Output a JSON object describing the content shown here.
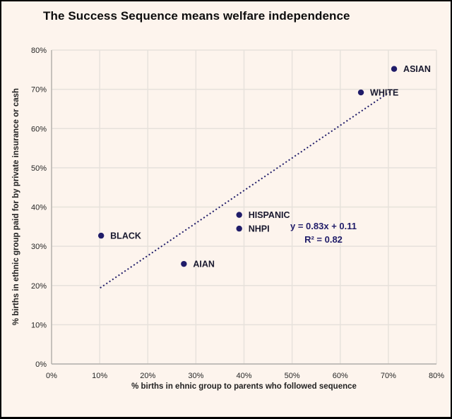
{
  "colors": {
    "background": "#fdf4ed",
    "frame_border": "#000000",
    "gridline": "#e6e1db",
    "axis_line": "#b3afab",
    "point": "#201c69",
    "trendline": "#201c69",
    "point_label": "#18182e",
    "tick_label": "#262626",
    "title_text": "#0d0d0d"
  },
  "chart_data": {
    "type": "scatter",
    "title": "The Success Sequence means welfare independence",
    "xlabel": "% births in ehnic group to parents who followed sequence",
    "ylabel": "% births in ethnic group paid for by private insurance or cash",
    "xlim": [
      0,
      0.8
    ],
    "ylim": [
      0,
      0.8
    ],
    "grid": true,
    "legend": false,
    "x_ticks": [
      {
        "v": 0.0,
        "label": "0%"
      },
      {
        "v": 0.1,
        "label": "10%"
      },
      {
        "v": 0.2,
        "label": "20%"
      },
      {
        "v": 0.3,
        "label": "30%"
      },
      {
        "v": 0.4,
        "label": "40%"
      },
      {
        "v": 0.5,
        "label": "50%"
      },
      {
        "v": 0.6,
        "label": "60%"
      },
      {
        "v": 0.7,
        "label": "70%"
      },
      {
        "v": 0.8,
        "label": "80%"
      }
    ],
    "y_ticks": [
      {
        "v": 0.0,
        "label": "0%"
      },
      {
        "v": 0.1,
        "label": "10%"
      },
      {
        "v": 0.2,
        "label": "20%"
      },
      {
        "v": 0.3,
        "label": "30%"
      },
      {
        "v": 0.4,
        "label": "40%"
      },
      {
        "v": 0.5,
        "label": "50%"
      },
      {
        "v": 0.6,
        "label": "60%"
      },
      {
        "v": 0.7,
        "label": "70%"
      },
      {
        "v": 0.8,
        "label": "80%"
      }
    ],
    "points": [
      {
        "label": "ASIAN",
        "x": 0.712,
        "y": 0.752
      },
      {
        "label": "WHITE",
        "x": 0.643,
        "y": 0.692
      },
      {
        "label": "HISPANIC",
        "x": 0.39,
        "y": 0.38
      },
      {
        "label": "NHPI",
        "x": 0.39,
        "y": 0.345
      },
      {
        "label": "BLACK",
        "x": 0.103,
        "y": 0.327
      },
      {
        "label": "AIAN",
        "x": 0.275,
        "y": 0.255
      }
    ],
    "trendline": {
      "slope": 0.83,
      "intercept": 0.11,
      "x_start": 0.101,
      "x_end": 0.708,
      "style": "dotted",
      "equation_label": "y = 0.83x + 0.11",
      "r2_label": "R² = 0.82"
    }
  }
}
